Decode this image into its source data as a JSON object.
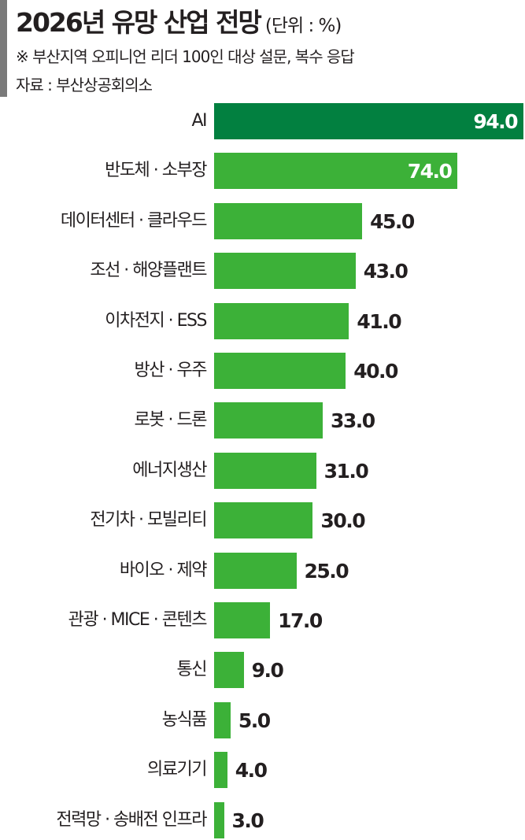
{
  "header": {
    "title": "2026년 유망 산업 전망",
    "unit": "(단위 : %)",
    "note": "※ 부산지역 오피니언 리더 100인 대상 설문, 복수 응답",
    "source": "자료 : 부산상공회의소"
  },
  "colors": {
    "highlight_bar": "#028040",
    "bar": "#3cb138",
    "accent": "#7a7a7a",
    "text": "#231f20"
  },
  "chart_data": {
    "type": "bar",
    "orientation": "horizontal",
    "title": "2026년 유망 산업 전망",
    "subtitle": "※ 부산지역 오피니언 리더 100인 대상 설문, 복수 응답",
    "source": "자료 : 부산상공회의소",
    "unit": "%",
    "xlabel": "",
    "ylabel": "",
    "xlim": [
      0,
      94
    ],
    "grid": false,
    "legend": null,
    "categories": [
      "AI",
      "반도체 · 소부장",
      "데이터센터 · 클라우드",
      "조선 · 해양플랜트",
      "이차전지 · ESS",
      "방산 · 우주",
      "로봇 · 드론",
      "에너지생산",
      "전기차 · 모빌리티",
      "바이오 · 제약",
      "관광 · MICE · 콘텐츠",
      "통신",
      "농식품",
      "의료기기",
      "전력망 · 송배전 인프라"
    ],
    "values": [
      94.0,
      74.0,
      45.0,
      43.0,
      41.0,
      40.0,
      33.0,
      31.0,
      30.0,
      25.0,
      17.0,
      9.0,
      5.0,
      4.0,
      3.0
    ],
    "value_labels": [
      "94.0",
      "74.0",
      "45.0",
      "43.0",
      "41.0",
      "40.0",
      "33.0",
      "31.0",
      "30.0",
      "25.0",
      "17.0",
      "9.0",
      "5.0",
      "4.0",
      "3.0"
    ]
  }
}
